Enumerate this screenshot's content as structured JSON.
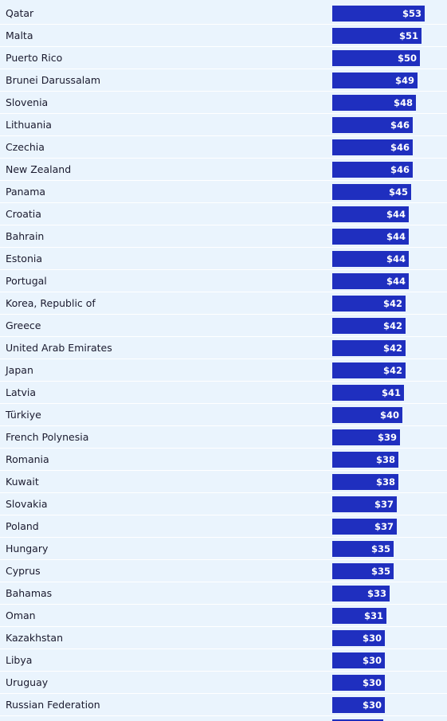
{
  "chart_data": {
    "type": "bar",
    "orientation": "horizontal",
    "value_prefix": "$",
    "colors": {
      "bar": "#1f2fbf",
      "background": "#eaf4fd",
      "label_text": "#1a1a2e",
      "value_text": "#ffffff"
    },
    "categories": [
      "Qatar",
      "Malta",
      "Puerto Rico",
      "Brunei Darussalam",
      "Slovenia",
      "Lithuania",
      "Czechia",
      "New Zealand",
      "Panama",
      "Croatia",
      "Bahrain",
      "Estonia",
      "Portugal",
      "Korea, Republic of",
      "Greece",
      "United Arab Emirates",
      "Japan",
      "Latvia",
      "Türkiye",
      "French Polynesia",
      "Romania",
      "Kuwait",
      "Slovakia",
      "Poland",
      "Hungary",
      "Cyprus",
      "Bahamas",
      "Oman",
      "Kazakhstan",
      "Libya",
      "Uruguay",
      "Russian Federation"
    ],
    "values": [
      53,
      51,
      50,
      49,
      48,
      46,
      46,
      46,
      45,
      44,
      44,
      44,
      44,
      42,
      42,
      42,
      42,
      41,
      40,
      39,
      38,
      38,
      37,
      37,
      35,
      35,
      33,
      31,
      30,
      30,
      30,
      30
    ],
    "value_labels": [
      "$53",
      "$51",
      "$50",
      "$49",
      "$48",
      "$46",
      "$46",
      "$46",
      "$45",
      "$44",
      "$44",
      "$44",
      "$44",
      "$42",
      "$42",
      "$42",
      "$42",
      "$41",
      "$40",
      "$39",
      "$38",
      "$38",
      "$37",
      "$37",
      "$35",
      "$35",
      "$33",
      "$31",
      "$30",
      "$30",
      "$30",
      "$30"
    ]
  }
}
